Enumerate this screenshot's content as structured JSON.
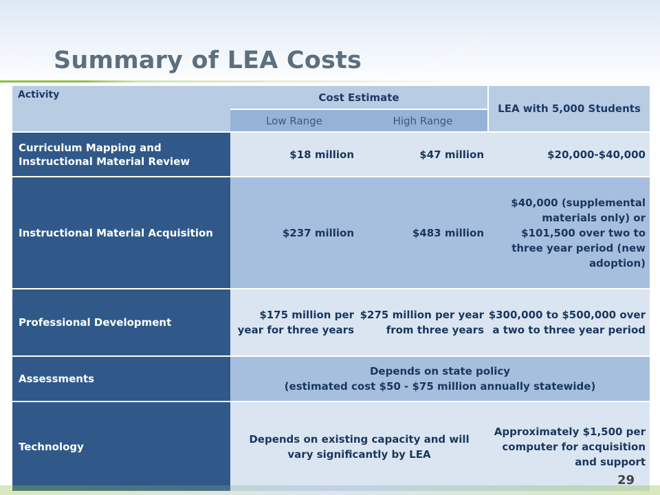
{
  "slide": {
    "title": "Summary of LEA Costs",
    "page_number": "29"
  },
  "table": {
    "headers": {
      "activity": "Activity",
      "cost_estimate": "Cost Estimate",
      "low_range": "Low Range",
      "high_range": "High Range",
      "lea": "LEA with 5,000 Students"
    },
    "rows": [
      {
        "activity": "Curriculum Mapping and Instructional Material Review",
        "low": "$18 million",
        "high": "$47 million",
        "lea": "$20,000-$40,000"
      },
      {
        "activity": "Instructional Material Acquisition",
        "low": "$237 million",
        "high": "$483 million",
        "lea": "$40,000 (supplemental materials only) or $101,500 over two to three year period (new adoption)"
      },
      {
        "activity": "Professional Development",
        "low": "$175 million per year for three years",
        "high": "$275 million per year from three years",
        "lea": "$300,000 to $500,000 over a two to three year period"
      },
      {
        "activity": "Assessments",
        "merged_line1": "Depends on state policy",
        "merged_line2": "(estimated cost $50 - $75 million annually statewide)"
      },
      {
        "activity": "Technology",
        "merged_cost": "Depends on existing capacity and will vary significantly by LEA",
        "lea": "Approximately $1,500 per computer for acquisition and support"
      }
    ]
  },
  "colors": {
    "header_fill": "#b8cce4",
    "subheader_fill": "#95b3d7",
    "activity_fill": "#305989",
    "row_light": "#dbe5f1",
    "row_medium": "#a7bfde",
    "title_color": "#5b6f7f",
    "accent_green": "#8cbf3f"
  }
}
